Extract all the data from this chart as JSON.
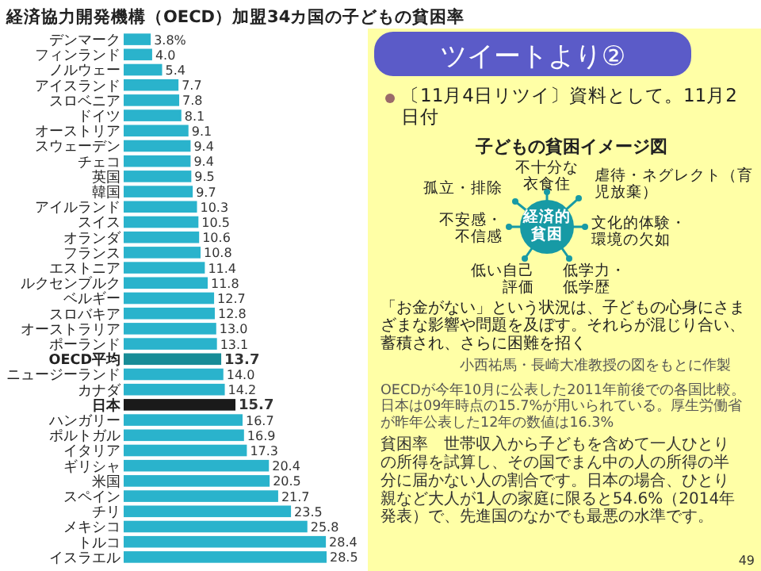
{
  "chart_data": [
    {
      "type": "bar",
      "orientation": "horizontal",
      "title": "経済協力開発機構（OECD）加盟34カ国の子どもの貧困率",
      "color": "#2ab3cc",
      "categories": [
        "デンマーク",
        "フィンランド",
        "ノルウェー",
        "アイスランド",
        "スロベニア",
        "ドイツ",
        "オーストリア",
        "スウェーデン",
        "チェコ",
        "英国",
        "韓国",
        "アイルランド",
        "スイス",
        "オランダ",
        "フランス",
        "エストニア",
        "ルクセンブルク",
        "ベルギー",
        "スロバキア",
        "オーストラリア",
        "ポーランド",
        "OECD平均",
        "ニュージーランド",
        "カナダ",
        "日本",
        "ハンガリー",
        "ポルトガル",
        "イタリア",
        "ギリシャ",
        "米国",
        "スペイン",
        "チリ",
        "メキシコ",
        "トルコ",
        "イスラエル"
      ],
      "values": [
        3.8,
        4.0,
        5.4,
        7.7,
        7.8,
        8.1,
        9.1,
        9.4,
        9.4,
        9.5,
        9.7,
        10.3,
        10.5,
        10.6,
        10.8,
        11.4,
        11.8,
        12.7,
        12.8,
        13.0,
        13.1,
        13.7,
        14.0,
        14.2,
        15.7,
        16.7,
        16.9,
        17.3,
        20.4,
        20.5,
        21.7,
        23.5,
        25.8,
        28.4,
        28.5
      ],
      "colors": [
        "#2ab3cc",
        "#2ab3cc",
        "#2ab3cc",
        "#2ab3cc",
        "#2ab3cc",
        "#2ab3cc",
        "#2ab3cc",
        "#2ab3cc",
        "#2ab3cc",
        "#2ab3cc",
        "#2ab3cc",
        "#2ab3cc",
        "#2ab3cc",
        "#2ab3cc",
        "#2ab3cc",
        "#2ab3cc",
        "#2ab3cc",
        "#2ab3cc",
        "#2ab3cc",
        "#2ab3cc",
        "#2ab3cc",
        "#178c97",
        "#2ab3cc",
        "#2ab3cc",
        "#1a1a1a",
        "#2ab3cc",
        "#2ab3cc",
        "#2ab3cc",
        "#2ab3cc",
        "#2ab3cc",
        "#2ab3cc",
        "#2ab3cc",
        "#2ab3cc",
        "#2ab3cc",
        "#2ab3cc"
      ],
      "value_labels": [
        "3.8%",
        "4.0",
        "5.4",
        "7.7",
        "7.8",
        "8.1",
        "9.1",
        "9.4",
        "9.4",
        "9.5",
        "9.7",
        "10.3",
        "10.5",
        "10.6",
        "10.8",
        "11.4",
        "11.8",
        "12.7",
        "12.8",
        "13.0",
        "13.1",
        "13.7",
        "14.0",
        "14.2",
        "15.7",
        "16.7",
        "16.9",
        "17.3",
        "20.4",
        "20.5",
        "21.7",
        "23.5",
        "25.8",
        "28.4",
        "28.5"
      ],
      "annotations": [
        "OECDが今年10月に公表した2011年前後での各国比較。日本は09年時点の15.7%が用いられている。厚生労働省が昨年公表した12年の数値は16.3%",
        "貧困率　世帯収入から子どもを含めて一人ひとりの所得を試算し、その国でまん中の人の所得の半分に届かない人の割合です。日本の場合、ひとり親など大人が1人の家庭に限ると54.6%（2014年発表）で、先進国のなかでも最悪の水準です。"
      ]
    },
    {
      "type": "other",
      "title": "子どもの貧困イメージ図",
      "annotations": [
        "経済的貧困",
        "不十分な衣食住",
        "虐待・ネグレクト（育児放棄）",
        "孤立・排除",
        "不安感・不信感",
        "文化的体験・環境の欠如",
        "低い自己評価",
        "低学力・低学歴",
        "「お金がない」という状況は、子どもの心身にさまざまな影響や問題を及ぼす。それらが混じり合い、蓄積され、さらに困難を招く",
        "小西祐馬・長崎大准教授の図をもとに作製"
      ]
    },
    {
      "type": "other",
      "title": "ツイートより②",
      "annotations": [
        "〔11月4日リツイ〕資料として。11月2日付",
        "49"
      ]
    }
  ]
}
